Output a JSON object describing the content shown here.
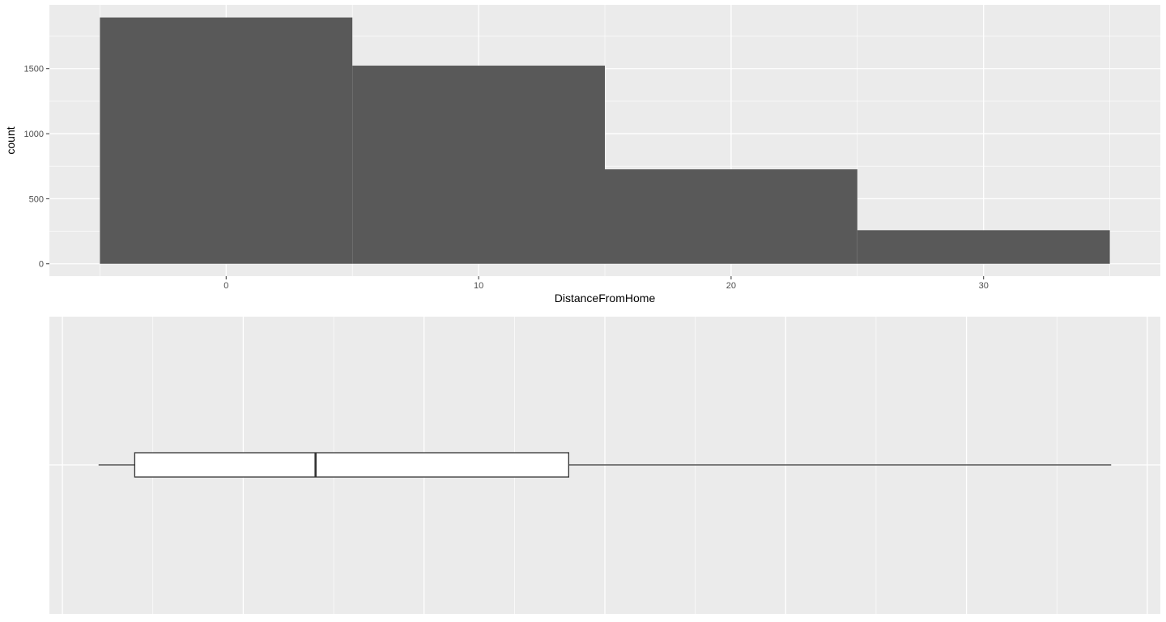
{
  "chart_data": [
    {
      "type": "bar",
      "subtype": "histogram",
      "bins": [
        {
          "x_start": -5,
          "x_end": 5,
          "count": 1893
        },
        {
          "x_start": 5,
          "x_end": 15,
          "count": 1523
        },
        {
          "x_start": 15,
          "x_end": 25,
          "count": 726
        },
        {
          "x_start": 25,
          "x_end": 35,
          "count": 258
        }
      ],
      "x_ticks": [
        0,
        10,
        20,
        30
      ],
      "y_ticks": [
        0,
        500,
        1000,
        1500
      ],
      "xlabel": "DistanceFromHome",
      "ylabel": "count",
      "xlim": [
        -7,
        37
      ],
      "ylim": [
        -95,
        1990
      ],
      "grid": true,
      "bar_color": "#595959",
      "panel_background": "#ebebeb"
    },
    {
      "type": "boxplot",
      "orientation": "horizontal",
      "whisker_low": 1,
      "q1": 2,
      "median": 7,
      "q3": 14,
      "whisker_high": 29,
      "xlim": [
        -0.36,
        30.36
      ],
      "grid": true,
      "box_fill": "#ffffff",
      "line_color": "#333333",
      "panel_background": "#ebebeb"
    }
  ]
}
